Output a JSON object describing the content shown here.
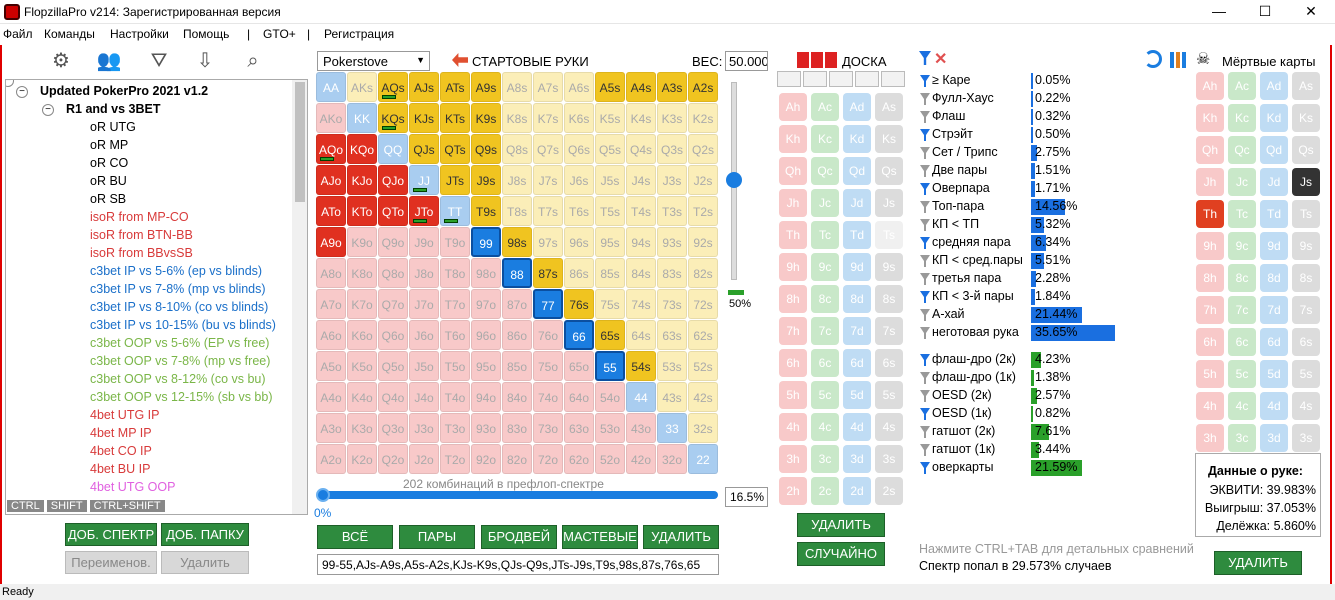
{
  "window": {
    "title": "FlopzillaPro v214: Зарегистрированная версия",
    "min": "—",
    "max": "☐",
    "close": "✕"
  },
  "menu": [
    "Файл",
    "Команды",
    "Настройки",
    "Помощь",
    "|",
    "GTO+",
    "|",
    "Регистрация"
  ],
  "tree": {
    "root": "Updated PokerPro 2021 v1.2",
    "folder": "R1 and vs 3BET",
    "items": [
      {
        "label": "oR UTG",
        "color": "#000"
      },
      {
        "label": "oR MP",
        "color": "#000"
      },
      {
        "label": "oR CO",
        "color": "#000"
      },
      {
        "label": "oR BU",
        "color": "#000"
      },
      {
        "label": "oR SB",
        "color": "#000"
      },
      {
        "label": "isoR from MP-CO",
        "color": "#d83a3a"
      },
      {
        "label": "isoR from BTN-BB",
        "color": "#d83a3a"
      },
      {
        "label": "isoR from BBvsSB",
        "color": "#d83a3a"
      },
      {
        "label": "c3bet IP vs 5-6% (ep vs blinds)",
        "color": "#1a6fc9"
      },
      {
        "label": "c3bet IP vs 7-8% (mp vs blinds)",
        "color": "#1a6fc9"
      },
      {
        "label": "c3bet IP vs 8-10% (co vs blinds)",
        "color": "#1a6fc9"
      },
      {
        "label": "c3bet IP vs 10-15% (bu vs blinds)",
        "color": "#1a6fc9"
      },
      {
        "label": "c3bet OOP vs 5-6% (EP vs free)",
        "color": "#7ab648"
      },
      {
        "label": "c3bet OOP vs 7-8% (mp vs free)",
        "color": "#7ab648"
      },
      {
        "label": "c3bet OOP vs 8-12% (co vs bu)",
        "color": "#7ab648"
      },
      {
        "label": "c3bet OOP vs 12-15% (sb vs bb)",
        "color": "#7ab648"
      },
      {
        "label": "4bet UTG IP",
        "color": "#d83a3a"
      },
      {
        "label": "4bet MP IP",
        "color": "#d83a3a"
      },
      {
        "label": "4bet CO IP",
        "color": "#d83a3a"
      },
      {
        "label": "4bet BU IP",
        "color": "#d83a3a"
      },
      {
        "label": "4bet UTG OOP",
        "color": "#e060e0"
      }
    ],
    "keys": [
      "CTRL",
      "SHIFT",
      "CTRL+SHIFT"
    ]
  },
  "left_buttons": {
    "add_range": "ДОБ. СПЕКТР",
    "add_folder": "ДОБ. ПАПКУ",
    "rename": "Переименов.",
    "delete": "Удалить"
  },
  "range": {
    "source": "Pokerstove",
    "title": "СТАРТОВЫЕ РУКИ",
    "weight_label": "ВЕС:",
    "weight_value": "50.000",
    "slider_value": "50%",
    "combos": "202 комбинаций в префлоп-спектре",
    "pct_left": "0%",
    "pct_right": "16.5%",
    "buttons": [
      "ВСЁ",
      "ПАРЫ",
      "БРОДВЕЙ",
      "МАСТЕВЫЕ",
      "УДАЛИТЬ"
    ],
    "text": "99-55,AJs-A9s,A5s-A2s,KJs-K9s,QJs-Q9s,JTs-J9s,T9s,98s,87s,76s,65"
  },
  "board": {
    "title": "ДОСКА",
    "delete": "УДАЛИТЬ",
    "random": "СЛУЧАЙНО"
  },
  "stats": {
    "rows": [
      {
        "label": "≥ Каре",
        "value": "0.05%",
        "bar": 0.0005
      },
      {
        "label": "Фулл-Хаус",
        "value": "0.22%",
        "bar": 0.0022
      },
      {
        "label": "Флаш",
        "value": "0.32%",
        "bar": 0.0032
      },
      {
        "label": "Стрэйт",
        "value": "0.50%",
        "bar": 0.005
      },
      {
        "label": "Сет / Трипс",
        "value": "2.75%",
        "bar": 0.0275
      },
      {
        "label": "Две пары",
        "value": "1.51%",
        "bar": 0.0151
      },
      {
        "label": "Оверпара",
        "value": "1.71%",
        "bar": 0.0171
      },
      {
        "label": "Топ-пара",
        "value": "14.56%",
        "bar": 0.1456
      },
      {
        "label": "КП < ТП",
        "value": "5.32%",
        "bar": 0.0532
      },
      {
        "label": "средняя пара",
        "value": "6.34%",
        "bar": 0.0634
      },
      {
        "label": "КП < сред.пары",
        "value": "5.51%",
        "bar": 0.0551
      },
      {
        "label": "третья пара",
        "value": "2.28%",
        "bar": 0.0228
      },
      {
        "label": "КП < 3-й пары",
        "value": "1.84%",
        "bar": 0.0184
      },
      {
        "label": "А-хай",
        "value": "21.44%",
        "bar": 0.2144
      },
      {
        "label": "неготовая рука",
        "value": "35.65%",
        "bar": 0.3565
      }
    ],
    "draws": [
      {
        "label": "флаш-дро (2к)",
        "value": "4.23%",
        "bar": 0.0423
      },
      {
        "label": "флаш-дро (1к)",
        "value": "1.38%",
        "bar": 0.0138
      },
      {
        "label": "OESD (2к)",
        "value": "2.57%",
        "bar": 0.0257
      },
      {
        "label": "OESD (1к)",
        "value": "0.82%",
        "bar": 0.0082
      },
      {
        "label": "гатшот (2к)",
        "value": "7.61%",
        "bar": 0.0761
      },
      {
        "label": "гатшот (1к)",
        "value": "3.44%",
        "bar": 0.0344
      },
      {
        "label": "оверкарты",
        "value": "21.59%",
        "bar": 0.2159
      }
    ],
    "hint": "Нажмите CTRL+TAB для детальных сравнений",
    "hit": "Спектр попал в 29.573% случаев"
  },
  "dead": {
    "title": "Мёртвые карты",
    "delete": "УДАЛИТЬ"
  },
  "hand_data": {
    "title": "Данные о руке:",
    "equity": "ЭКВИТИ: 39.983%",
    "win": "Выигрыш: 37.053%",
    "tie": "Делёжка: 5.860%"
  },
  "status": "Ready"
}
